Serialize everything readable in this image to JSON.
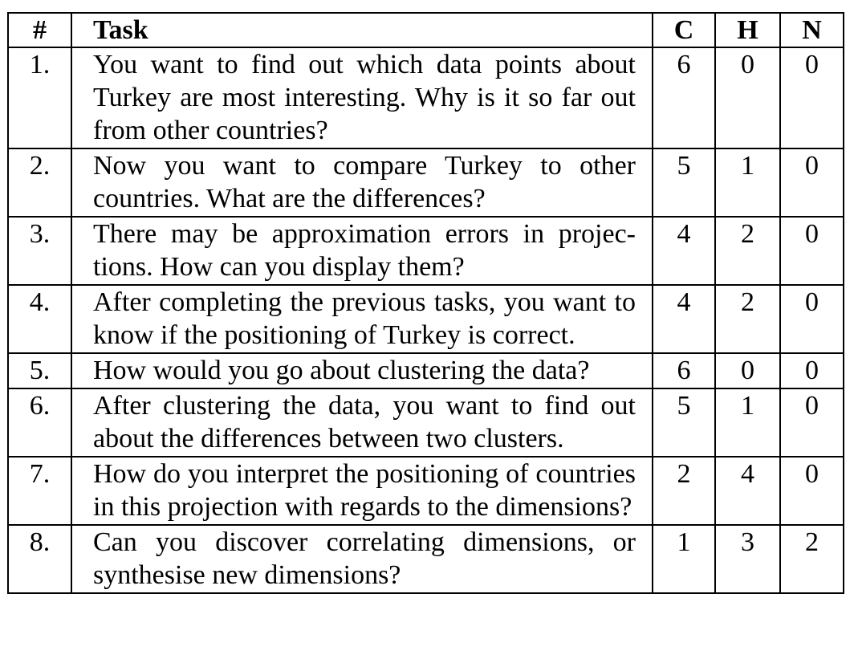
{
  "headers": {
    "num": "#",
    "task": "Task",
    "c": "C",
    "h": "H",
    "n": "N"
  },
  "rows": [
    {
      "num": "1.",
      "task": "You want to find out which data points about Turkey are most interesting. Why is it so far out from other countries?",
      "c": "6",
      "h": "0",
      "n": "0"
    },
    {
      "num": "2.",
      "task": "Now you want to compare Turkey to other countries. What are the differences?",
      "c": "5",
      "h": "1",
      "n": "0"
    },
    {
      "num": "3.",
      "task": "There may be approximation errors in projec­tions. How can you display them?",
      "c": "4",
      "h": "2",
      "n": "0"
    },
    {
      "num": "4.",
      "task": "After completing the previous tasks, you want to know if the positioning of Turkey is correct.",
      "c": "4",
      "h": "2",
      "n": "0"
    },
    {
      "num": "5.",
      "task": "How would you go about clustering the data?",
      "c": "6",
      "h": "0",
      "n": "0"
    },
    {
      "num": "6.",
      "task": "After clustering the data, you want to find out about the differences between two clusters.",
      "c": "5",
      "h": "1",
      "n": "0"
    },
    {
      "num": "7.",
      "task": "How do you interpret the positioning of coun­tries in this projection with regards to the dimensions?",
      "c": "2",
      "h": "4",
      "n": "0"
    },
    {
      "num": "8.",
      "task": "Can you discover correlating dimensions, or synthesise new dimensions?",
      "c": "1",
      "h": "3",
      "n": "2"
    }
  ]
}
